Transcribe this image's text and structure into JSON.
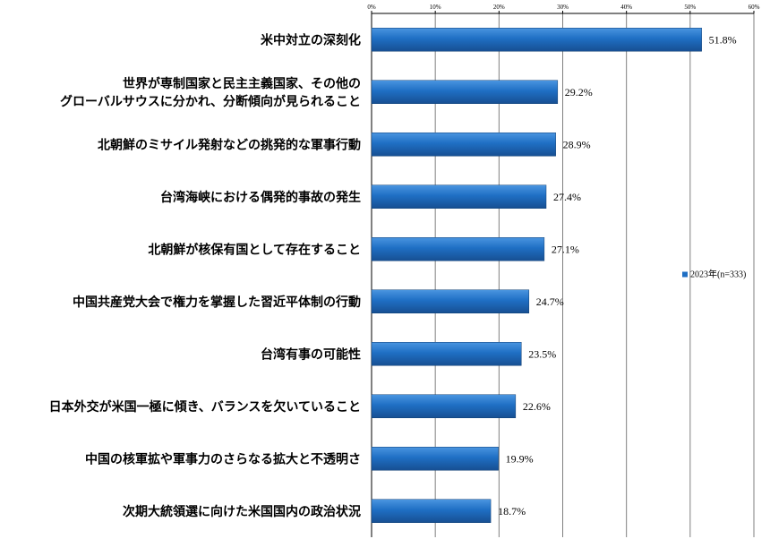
{
  "chart_data": {
    "type": "bar",
    "orientation": "horizontal",
    "categories": [
      [
        "米中対立の深刻化"
      ],
      [
        "世界が専制国家と民主主義国家、その他の",
        "グローバルサウスに分かれ、分断傾向が見られること"
      ],
      [
        "北朝鮮のミサイル発射などの挑発的な軍事行動"
      ],
      [
        "台湾海峡における偶発的事故の発生"
      ],
      [
        "北朝鮮が核保有国として存在すること"
      ],
      [
        "中国共産党大会で権力を掌握した習近平体制の行動"
      ],
      [
        "台湾有事の可能性"
      ],
      [
        "日本外交が米国一極に傾き、バランスを欠いていること"
      ],
      [
        "中国の核軍拡や軍事力のさらなる拡大と不透明さ"
      ],
      [
        "次期大統領選に向けた米国国内の政治状況"
      ]
    ],
    "series": [
      {
        "name": "2023年(n=333)",
        "color": "#1f6fc4",
        "values": [
          51.8,
          29.2,
          28.9,
          27.4,
          27.1,
          24.7,
          23.5,
          22.6,
          19.9,
          18.7
        ],
        "labels": [
          "51.8%",
          "29.2%",
          "28.9%",
          "27.4%",
          "27.1%",
          "24.7%",
          "23.5%",
          "22.6%",
          "19.9%",
          "18.7%"
        ]
      }
    ],
    "xticks": [
      "0%",
      "10%",
      "20%",
      "30%",
      "40%",
      "50%",
      "60%"
    ],
    "xlim": [
      0,
      60
    ],
    "grid": true,
    "legend_position": "right"
  }
}
